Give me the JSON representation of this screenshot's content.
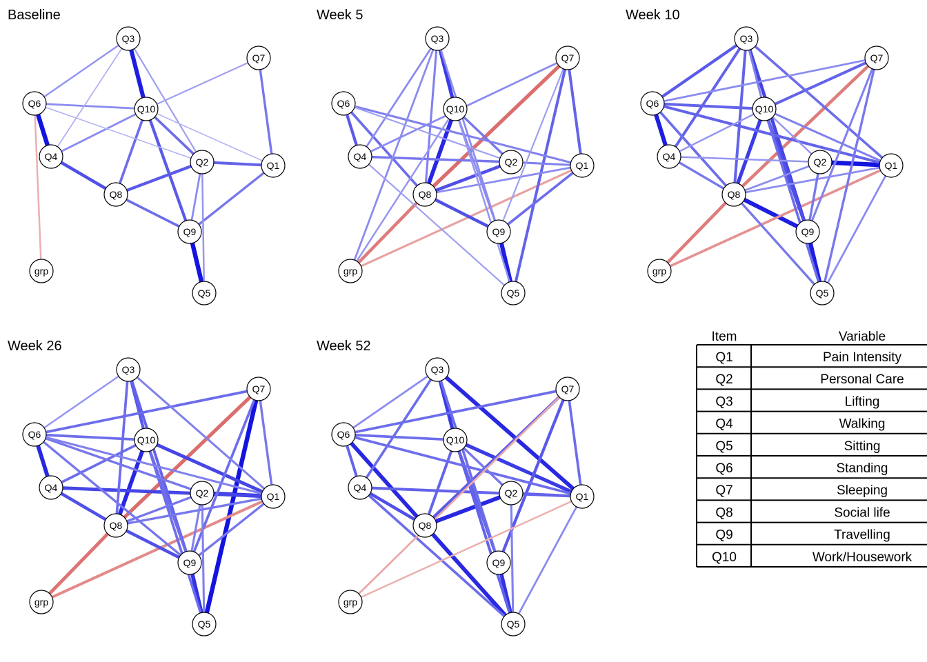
{
  "colors": {
    "positive": "#0000dd",
    "negative": "#d04040",
    "node_fill": "#ffffff",
    "node_stroke": "#000000"
  },
  "panels": [
    {
      "title": "Baseline",
      "edges": [
        [
          "Q3",
          "Q10",
          0.85,
          "pos"
        ],
        [
          "Q6",
          "Q4",
          0.9,
          "pos"
        ],
        [
          "Q9",
          "Q5",
          0.9,
          "pos"
        ],
        [
          "Q4",
          "Q8",
          0.6,
          "pos"
        ],
        [
          "Q10",
          "Q9",
          0.55,
          "pos"
        ],
        [
          "Q8",
          "Q2",
          0.55,
          "pos"
        ],
        [
          "Q2",
          "Q1",
          0.5,
          "pos"
        ],
        [
          "Q8",
          "Q9",
          0.45,
          "pos"
        ],
        [
          "Q10",
          "Q8",
          0.45,
          "pos"
        ],
        [
          "Q10",
          "Q2",
          0.45,
          "pos"
        ],
        [
          "Q9",
          "Q1",
          0.4,
          "pos"
        ],
        [
          "Q7",
          "Q1",
          0.4,
          "pos"
        ],
        [
          "Q6",
          "Q10",
          0.3,
          "pos"
        ],
        [
          "Q4",
          "Q10",
          0.3,
          "pos"
        ],
        [
          "Q3",
          "Q6",
          0.25,
          "pos"
        ],
        [
          "Q2",
          "Q9",
          0.3,
          "pos"
        ],
        [
          "Q2",
          "Q5",
          0.25,
          "pos"
        ],
        [
          "Q10",
          "Q7",
          0.2,
          "pos"
        ],
        [
          "Q3",
          "Q2",
          0.2,
          "pos"
        ],
        [
          "Q3",
          "Q4",
          0.12,
          "pos"
        ],
        [
          "Q6",
          "Q2",
          0.1,
          "pos"
        ],
        [
          "Q10",
          "Q1",
          0.1,
          "pos"
        ],
        [
          "Q6",
          "grp",
          0.25,
          "neg"
        ]
      ]
    },
    {
      "title": "Week 5",
      "edges": [
        [
          "Q10",
          "Q8",
          0.8,
          "pos"
        ],
        [
          "Q3",
          "Q10",
          0.7,
          "pos"
        ],
        [
          "Q9",
          "Q5",
          0.85,
          "pos"
        ],
        [
          "Q7",
          "Q8",
          0.7,
          "neg"
        ],
        [
          "Q8",
          "grp",
          0.6,
          "neg"
        ],
        [
          "grp",
          "Q1",
          0.35,
          "neg"
        ],
        [
          "Q8",
          "Q2",
          0.6,
          "pos"
        ],
        [
          "Q8",
          "Q9",
          0.6,
          "pos"
        ],
        [
          "Q6",
          "Q4",
          0.55,
          "pos"
        ],
        [
          "Q7",
          "Q1",
          0.5,
          "pos"
        ],
        [
          "Q7",
          "Q5",
          0.5,
          "pos"
        ],
        [
          "Q9",
          "Q1",
          0.45,
          "pos"
        ],
        [
          "Q6",
          "Q8",
          0.45,
          "pos"
        ],
        [
          "Q4",
          "Q2",
          0.4,
          "pos"
        ],
        [
          "Q10",
          "Q2",
          0.4,
          "pos"
        ],
        [
          "Q2",
          "Q1",
          0.35,
          "pos"
        ],
        [
          "Q3",
          "Q8",
          0.35,
          "pos"
        ],
        [
          "Q3",
          "Q9",
          0.3,
          "pos"
        ],
        [
          "Q6",
          "Q1",
          0.35,
          "pos"
        ],
        [
          "Q3",
          "grp",
          0.3,
          "pos"
        ],
        [
          "Q10",
          "Q9",
          0.3,
          "pos"
        ],
        [
          "Q8",
          "Q1",
          0.3,
          "pos"
        ],
        [
          "Q4",
          "Q7",
          0.3,
          "pos"
        ],
        [
          "Q3",
          "Q4",
          0.3,
          "pos"
        ],
        [
          "Q10",
          "Q5",
          0.25,
          "pos"
        ],
        [
          "Q10",
          "grp",
          0.25,
          "pos"
        ],
        [
          "Q4",
          "Q5",
          0.2,
          "pos"
        ],
        [
          "Q7",
          "Q9",
          0.2,
          "pos"
        ],
        [
          "Q6",
          "Q2",
          0.2,
          "pos"
        ]
      ]
    },
    {
      "title": "Week 10",
      "edges": [
        [
          "Q6",
          "Q4",
          0.85,
          "pos"
        ],
        [
          "Q8",
          "Q9",
          0.85,
          "pos"
        ],
        [
          "Q9",
          "Q5",
          0.85,
          "pos"
        ],
        [
          "Q2",
          "Q1",
          0.9,
          "pos"
        ],
        [
          "Q10",
          "Q8",
          0.7,
          "pos"
        ],
        [
          "Q7",
          "Q8",
          0.6,
          "neg"
        ],
        [
          "Q8",
          "grp",
          0.6,
          "neg"
        ],
        [
          "grp",
          "Q1",
          0.45,
          "neg"
        ],
        [
          "Q3",
          "Q9",
          0.65,
          "pos"
        ],
        [
          "Q10",
          "Q9",
          0.6,
          "pos"
        ],
        [
          "Q3",
          "Q6",
          0.55,
          "pos"
        ],
        [
          "Q3",
          "Q4",
          0.5,
          "pos"
        ],
        [
          "Q3",
          "Q8",
          0.5,
          "pos"
        ],
        [
          "Q6",
          "Q10",
          0.5,
          "pos"
        ],
        [
          "Q6",
          "Q1",
          0.5,
          "pos"
        ],
        [
          "Q10",
          "Q7",
          0.5,
          "pos"
        ],
        [
          "Q3",
          "Q1",
          0.45,
          "pos"
        ],
        [
          "Q10",
          "Q5",
          0.45,
          "pos"
        ],
        [
          "Q6",
          "Q8",
          0.45,
          "pos"
        ],
        [
          "Q4",
          "Q8",
          0.4,
          "pos"
        ],
        [
          "Q8",
          "Q5",
          0.4,
          "pos"
        ],
        [
          "Q7",
          "Q5",
          0.4,
          "pos"
        ],
        [
          "Q7",
          "Q9",
          0.35,
          "pos"
        ],
        [
          "Q10",
          "Q1",
          0.35,
          "pos"
        ],
        [
          "Q6",
          "Q7",
          0.3,
          "pos"
        ],
        [
          "Q8",
          "Q1",
          0.3,
          "pos"
        ],
        [
          "Q8",
          "Q2",
          0.3,
          "pos"
        ],
        [
          "Q4",
          "Q2",
          0.25,
          "pos"
        ],
        [
          "Q1",
          "Q5",
          0.3,
          "pos"
        ],
        [
          "Q4",
          "Q10",
          0.25,
          "pos"
        ],
        [
          "Q10",
          "Q2",
          0.25,
          "pos"
        ],
        [
          "Q2",
          "Q9",
          0.4,
          "pos"
        ],
        [
          "Q3",
          "Q10",
          0.35,
          "pos"
        ]
      ]
    },
    {
      "title": "Week 26",
      "edges": [
        [
          "Q7",
          "Q5",
          0.9,
          "pos"
        ],
        [
          "Q7",
          "Q8",
          0.7,
          "neg"
        ],
        [
          "Q8",
          "grp",
          0.65,
          "neg"
        ],
        [
          "grp",
          "Q1",
          0.5,
          "neg"
        ],
        [
          "Q6",
          "Q4",
          0.8,
          "pos"
        ],
        [
          "Q10",
          "Q8",
          0.8,
          "pos"
        ],
        [
          "Q2",
          "Q1",
          0.8,
          "pos"
        ],
        [
          "Q9",
          "Q5",
          0.75,
          "pos"
        ],
        [
          "Q4",
          "Q1",
          0.65,
          "pos"
        ],
        [
          "Q10",
          "Q1",
          0.65,
          "pos"
        ],
        [
          "Q4",
          "Q8",
          0.6,
          "pos"
        ],
        [
          "Q8",
          "Q9",
          0.6,
          "pos"
        ],
        [
          "Q3",
          "Q10",
          0.55,
          "pos"
        ],
        [
          "Q3",
          "Q9",
          0.5,
          "pos"
        ],
        [
          "Q6",
          "Q10",
          0.45,
          "pos"
        ],
        [
          "Q3",
          "Q8",
          0.45,
          "pos"
        ],
        [
          "Q6",
          "Q7",
          0.45,
          "pos"
        ],
        [
          "Q4",
          "Q10",
          0.45,
          "pos"
        ],
        [
          "Q7",
          "Q9",
          0.45,
          "pos"
        ],
        [
          "Q10",
          "Q9",
          0.45,
          "pos"
        ],
        [
          "Q10",
          "Q5",
          0.45,
          "pos"
        ],
        [
          "Q6",
          "Q9",
          0.4,
          "pos"
        ],
        [
          "Q6",
          "Q2",
          0.4,
          "pos"
        ],
        [
          "Q7",
          "Q1",
          0.4,
          "pos"
        ],
        [
          "Q8",
          "Q2",
          0.4,
          "pos"
        ],
        [
          "Q8",
          "Q1",
          0.4,
          "pos"
        ],
        [
          "Q1",
          "Q9",
          0.4,
          "pos"
        ],
        [
          "Q2",
          "Q9",
          0.35,
          "pos"
        ],
        [
          "Q3",
          "Q1",
          0.35,
          "pos"
        ],
        [
          "Q3",
          "Q6",
          0.25,
          "pos"
        ],
        [
          "Q6",
          "Q1",
          0.35,
          "pos"
        ],
        [
          "Q2",
          "Q5",
          0.35,
          "pos"
        ]
      ]
    },
    {
      "title": "Week 52",
      "edges": [
        [
          "Q3",
          "Q1",
          0.8,
          "pos"
        ],
        [
          "Q6",
          "Q8",
          0.8,
          "pos"
        ],
        [
          "Q8",
          "Q5",
          0.8,
          "pos"
        ],
        [
          "Q8",
          "Q2",
          0.8,
          "pos"
        ],
        [
          "Q9",
          "Q5",
          0.75,
          "pos"
        ],
        [
          "Q3",
          "Q10",
          0.7,
          "pos"
        ],
        [
          "Q10",
          "Q1",
          0.7,
          "pos"
        ],
        [
          "Q4",
          "Q8",
          0.6,
          "pos"
        ],
        [
          "Q7",
          "Q8",
          0.55,
          "pos"
        ],
        [
          "Q7",
          "Q9",
          0.55,
          "pos"
        ],
        [
          "Q6",
          "Q4",
          0.5,
          "pos"
        ],
        [
          "Q4",
          "Q1",
          0.5,
          "pos"
        ],
        [
          "Q2",
          "Q1",
          0.5,
          "pos"
        ],
        [
          "Q10",
          "Q9",
          0.5,
          "pos"
        ],
        [
          "Q10",
          "Q5",
          0.5,
          "pos"
        ],
        [
          "Q10",
          "Q8",
          0.5,
          "pos"
        ],
        [
          "Q3",
          "Q4",
          0.45,
          "pos"
        ],
        [
          "Q3",
          "Q9",
          0.45,
          "pos"
        ],
        [
          "Q6",
          "Q7",
          0.45,
          "pos"
        ],
        [
          "Q6",
          "Q10",
          0.45,
          "pos"
        ],
        [
          "Q6",
          "Q1",
          0.45,
          "pos"
        ],
        [
          "Q4",
          "Q5",
          0.45,
          "pos"
        ],
        [
          "Q7",
          "Q1",
          0.45,
          "pos"
        ],
        [
          "Q10",
          "Q2",
          0.4,
          "pos"
        ],
        [
          "Q3",
          "Q6",
          0.3,
          "pos"
        ],
        [
          "Q2",
          "Q5",
          0.35,
          "pos"
        ],
        [
          "Q1",
          "Q5",
          0.3,
          "pos"
        ],
        [
          "Q7",
          "grp",
          0.3,
          "neg"
        ],
        [
          "grp",
          "Q1",
          0.25,
          "neg"
        ]
      ]
    }
  ],
  "table": {
    "headers": [
      "Item",
      "Variable"
    ],
    "rows": [
      [
        "Q1",
        "Pain Intensity"
      ],
      [
        "Q2",
        "Personal Care"
      ],
      [
        "Q3",
        "Lifting"
      ],
      [
        "Q4",
        "Walking"
      ],
      [
        "Q5",
        "Sitting"
      ],
      [
        "Q6",
        "Standing"
      ],
      [
        "Q7",
        "Sleeping"
      ],
      [
        "Q8",
        "Social life"
      ],
      [
        "Q9",
        "Travelling"
      ],
      [
        "Q10",
        "Work/Housework"
      ]
    ]
  }
}
